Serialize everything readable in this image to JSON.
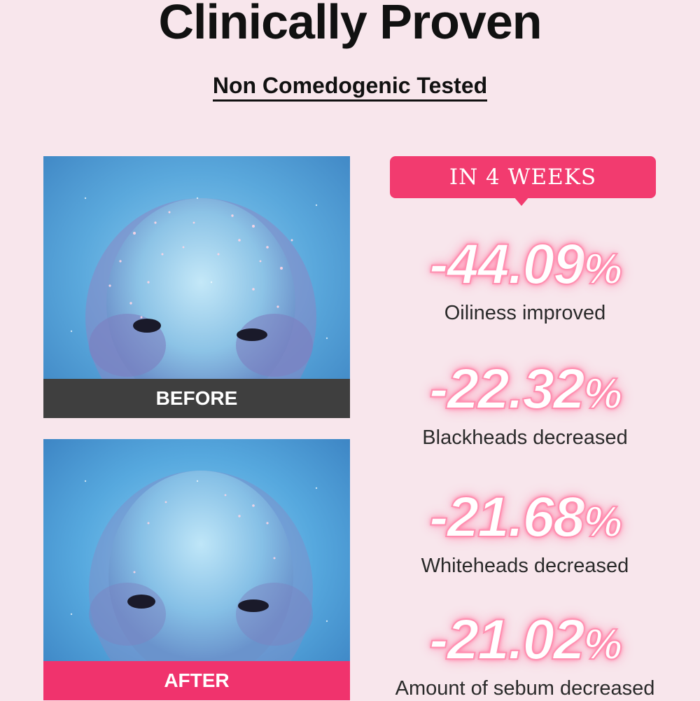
{
  "header": {
    "title": "Clinically Proven",
    "subtitle": "Non Comedogenic Tested"
  },
  "photos": {
    "before_label": "BEFORE",
    "after_label": "AFTER"
  },
  "badge": {
    "label": "IN 4 WEEKS",
    "color": "#f23b6f"
  },
  "stats": [
    {
      "value": "-44.09",
      "unit": "%",
      "label": "Oiliness improved"
    },
    {
      "value": "-22.32",
      "unit": "%",
      "label": "Blackheads decreased"
    },
    {
      "value": "-21.68",
      "unit": "%",
      "label": "Whiteheads decreased"
    },
    {
      "value": "-21.02",
      "unit": "%",
      "label": "Amount of sebum decreased"
    }
  ],
  "colors": {
    "background": "#f8e6ec",
    "accent": "#f0336d",
    "before_bar": "#3f3f3f"
  }
}
